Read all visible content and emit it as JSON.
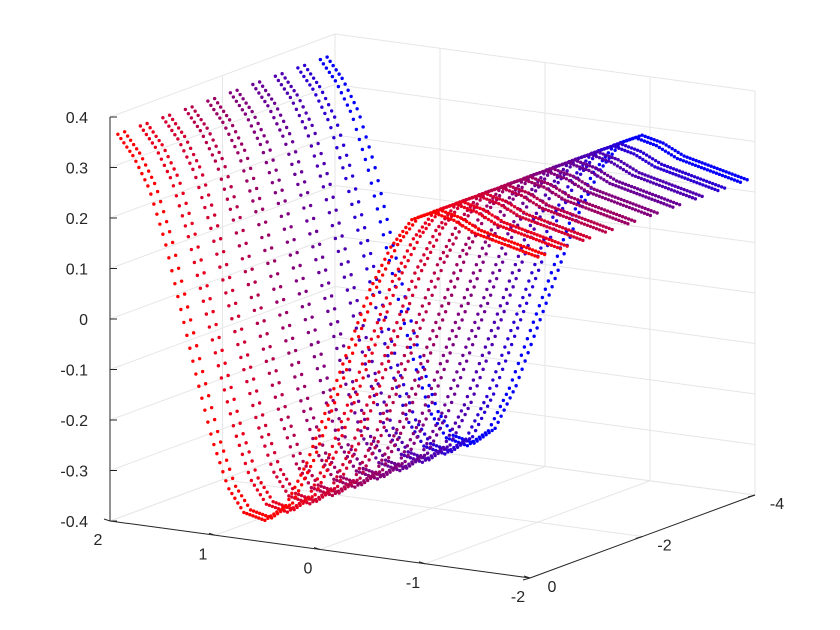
{
  "chart_data": {
    "type": "scatter",
    "title": "",
    "xlabel": "",
    "ylabel": "",
    "zlabel": "",
    "grid": true,
    "legend": "none",
    "colormap": [
      "#ff0000",
      "#0000ff"
    ],
    "x_axis": {
      "lim": [
        -2,
        2
      ],
      "ticks": [
        2,
        1,
        0,
        -1,
        -2
      ],
      "tick_labels": [
        "2",
        "1",
        "0",
        "-1",
        "-2"
      ]
    },
    "y_axis": {
      "lim": [
        -4,
        0
      ],
      "ticks": [
        0,
        -2,
        -4
      ],
      "tick_labels": [
        "0",
        "-2",
        "-4"
      ]
    },
    "z_axis": {
      "lim": [
        -0.4,
        0.4
      ],
      "ticks": [
        0.4,
        0.3,
        0.2,
        0.1,
        0,
        -0.1,
        -0.2,
        -0.3,
        -0.4
      ],
      "tick_labels": [
        "0.4",
        "0.3",
        "0.2",
        "0.1",
        "0",
        "-0.1",
        "-0.2",
        "-0.3",
        "-0.4"
      ]
    },
    "series": [
      {
        "y": -0.2,
        "color": "#fc0003"
      },
      {
        "y": -0.6,
        "color": "#e9001c"
      },
      {
        "y": -1.0,
        "color": "#d20032"
      },
      {
        "y": -1.4,
        "color": "#b7004b"
      },
      {
        "y": -1.8,
        "color": "#9b0064"
      },
      {
        "y": -2.2,
        "color": "#82007d"
      },
      {
        "y": -2.6,
        "color": "#690096"
      },
      {
        "y": -3.0,
        "color": "#4e00b0"
      },
      {
        "y": -3.4,
        "color": "#2c00d2"
      },
      {
        "y": -3.8,
        "color": "#0500f9"
      }
    ],
    "curve_points": [
      [
        2.0,
        0.36
      ],
      [
        1.85,
        0.32
      ],
      [
        1.7,
        0.26
      ],
      [
        1.55,
        0.16
      ],
      [
        1.4,
        0.03
      ],
      [
        1.25,
        -0.1
      ],
      [
        1.1,
        -0.22
      ],
      [
        0.95,
        -0.31
      ],
      [
        0.8,
        -0.355
      ],
      [
        0.6,
        -0.365
      ],
      [
        0.4,
        -0.33
      ],
      [
        0.2,
        -0.24
      ],
      [
        0.0,
        -0.12
      ],
      [
        -0.2,
        0.0
      ],
      [
        -0.4,
        0.12
      ],
      [
        -0.6,
        0.21
      ],
      [
        -0.8,
        0.27
      ],
      [
        -1.0,
        0.29
      ],
      [
        -1.2,
        0.28
      ],
      [
        -1.4,
        0.26
      ],
      [
        -1.6,
        0.25
      ],
      [
        -1.8,
        0.24
      ],
      [
        -2.0,
        0.23
      ]
    ]
  }
}
